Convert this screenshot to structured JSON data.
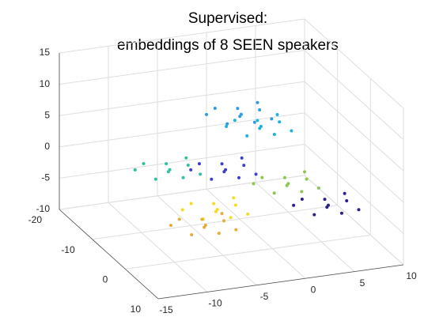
{
  "chart_data": {
    "type": "scatter3d",
    "title": [
      "Supervised:",
      "embeddings of 8 SEEN speakers"
    ],
    "xlim": [
      -15,
      10
    ],
    "xticks": [
      -15,
      -10,
      -5,
      0,
      5,
      10
    ],
    "ylim": [
      -20,
      10
    ],
    "yticks": [
      -20,
      -10,
      0,
      10
    ],
    "zlim": [
      -10,
      15
    ],
    "zticks": [
      -10,
      -5,
      0,
      5,
      10,
      15
    ],
    "grid": true,
    "series": [
      {
        "color": "#2b9de3",
        "x": [
          -1.5,
          0.6,
          -3.3,
          -0.3,
          -3.9,
          -0.9,
          -2.4,
          1.3,
          -4.4,
          0
        ],
        "y": [
          -5,
          -6.3,
          -3.9,
          -3,
          -5.8,
          -7.2,
          -3.4,
          -4.1,
          -6.9,
          -5.4
        ],
        "z": [
          9.4,
          10.2,
          8.8,
          10.8,
          10.5,
          7.9,
          11.3,
          8.5,
          9.1,
          7.6
        ]
      },
      {
        "color": "#2ec2a2",
        "x": [
          -7.1,
          -5,
          -8.9,
          -5.9,
          -9.5,
          -6.5,
          -8,
          -4.3,
          -10,
          -5.6
        ],
        "y": [
          -10,
          -11.3,
          -8.9,
          -8,
          -10.8,
          -12.2,
          -8.4,
          -9.1,
          -11.9,
          -10.4
        ],
        "z": [
          -0.6,
          0.2,
          -1.2,
          0.8,
          0.5,
          -2.1,
          1.3,
          -1.5,
          -0.9,
          -2.4
        ]
      },
      {
        "color": "#3b3ed0",
        "x": [
          -3.1,
          -1,
          -4.9,
          -1.9,
          -5.5,
          -2.5,
          -4,
          -0.3,
          -6,
          -1.6
        ],
        "y": [
          -5,
          -6.3,
          -3.9,
          -3,
          -5.8,
          -7.2,
          -3.4,
          -4.1,
          -6.9,
          -5.4
        ],
        "z": [
          0.9,
          1.7,
          0.3,
          2.3,
          2,
          -0.6,
          2.8,
          0,
          0.6,
          -0.9
        ]
      },
      {
        "color": "#f5dc1e",
        "x": [
          -7.3,
          -5.2,
          -9.1,
          -6.1,
          -9.7,
          -6.7,
          -8.2,
          -4.5,
          -10.2,
          -5.8
        ],
        "y": [
          5,
          3.7,
          6.1,
          7,
          4.2,
          2.8,
          6.6,
          5.9,
          3.1,
          4.6
        ],
        "z": [
          0.2,
          1,
          -0.4,
          1.6,
          1.3,
          -1.3,
          2.1,
          -0.7,
          -0.1,
          -1.6
        ]
      },
      {
        "color": "#eaaa38",
        "x": [
          -9.5,
          -7.4,
          -11.3,
          -8.3,
          -11.9,
          -8.9,
          -10.4,
          -6.7,
          -12.4,
          -8
        ],
        "y": [
          8,
          6.7,
          9.1,
          10,
          7.2,
          5.8,
          9.6,
          8.9,
          6.1,
          7.6
        ],
        "z": [
          -0.4,
          0.4,
          -1,
          1,
          0.7,
          -1.9,
          1.5,
          -1.3,
          -0.7,
          -2.2
        ]
      },
      {
        "color": "#8cc84e",
        "x": [
          3.3,
          5.4,
          1.5,
          4.5,
          0.9,
          3.9,
          2.4,
          6.1,
          0.4,
          4.8
        ],
        "y": [
          -5,
          -6.3,
          -3.9,
          -3,
          -5.8,
          -7.2,
          -3.4,
          -4.1,
          -6.9,
          -5.4
        ],
        "z": [
          -2.7,
          -1.9,
          -3.3,
          -1.3,
          -1.6,
          -4.2,
          -0.8,
          -3.6,
          -3,
          -4.5
        ]
      },
      {
        "color": "#2a1f8f",
        "x": [
          5.7,
          7.8,
          3.9,
          6.9,
          3.3,
          6.3,
          4.8,
          8.5,
          2.8,
          7.2
        ],
        "y": [
          0,
          -1.3,
          1.1,
          2,
          -0.8,
          -2.2,
          1.6,
          0.9,
          -1.9,
          -0.4
        ],
        "z": [
          -4.3,
          -3.5,
          -4.9,
          -2.9,
          -3.2,
          -5.8,
          -2.4,
          -5.2,
          -4.6,
          -6.1
        ]
      },
      {
        "color": "#1fb2dc",
        "x": [
          2.2,
          4.3,
          0.4,
          3.4,
          -0.2,
          2.8,
          1.3,
          5,
          -0.7,
          3.7
        ],
        "y": [
          -10,
          -11.3,
          -8.9,
          -8,
          -10.8,
          -12.2,
          -8.4,
          -9.1,
          -11.9,
          -10.4
        ],
        "z": [
          4.3,
          5.1,
          3.7,
          5.7,
          5.4,
          2.8,
          6.2,
          3.4,
          4,
          2.5
        ]
      }
    ]
  }
}
